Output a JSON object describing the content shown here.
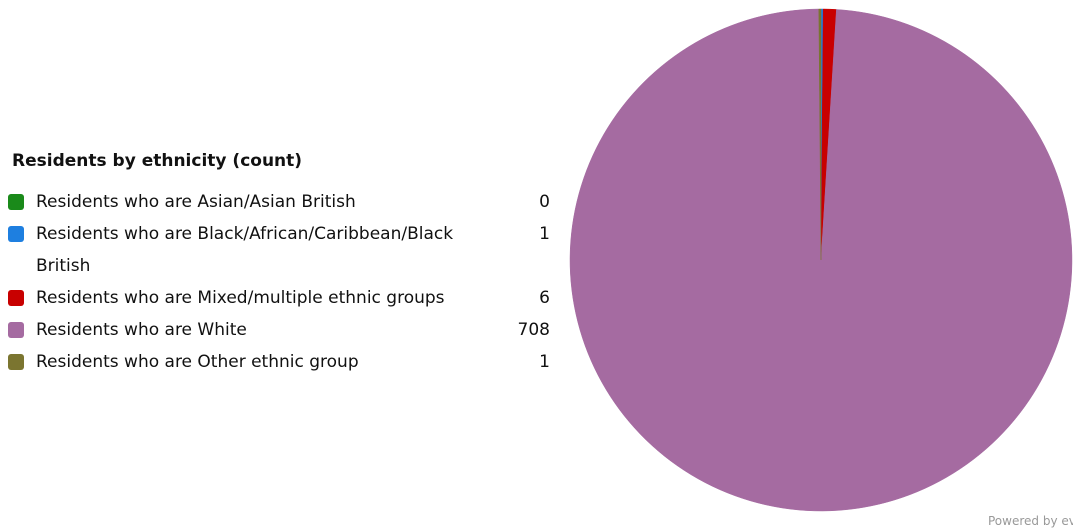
{
  "chart_data": {
    "type": "pie",
    "title": "Residents by ethnicity (count)",
    "slices": [
      {
        "label": "Residents who are Asian/Asian British",
        "value": 0,
        "display": "0",
        "color": "#1a8a1a"
      },
      {
        "label": "Residents who are Black/African/Caribbean/Black British",
        "value": 1,
        "display": "1",
        "color": "#1e7fe0"
      },
      {
        "label": "Residents who are Mixed/multiple ethnic groups",
        "value": 6,
        "display": "6",
        "color": "#c80000"
      },
      {
        "label": "Residents who are White",
        "value": 708,
        "display": "708",
        "color": "#a56ba1"
      },
      {
        "label": "Residents who are Other ethnic group",
        "value": 1,
        "display": "1",
        "color": "#7b7530"
      }
    ]
  },
  "footer": {
    "powered_text": "Powered by ev"
  }
}
